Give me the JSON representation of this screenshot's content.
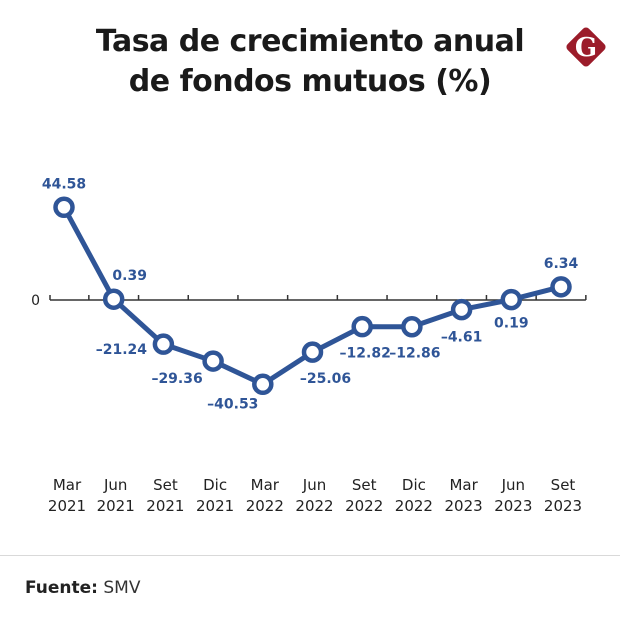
{
  "header": {
    "title_line1": "Tasa de crecimiento anual",
    "title_line2": "de fondos mutuos (%)",
    "logo_letter": "G",
    "logo_color": "#9b1c2a"
  },
  "footer": {
    "source_label": "Fuente:",
    "source_value": "SMV"
  },
  "colors": {
    "line": "#2f5597",
    "axis": "#333333",
    "label": "#2f5597"
  },
  "chart_data": {
    "type": "line",
    "title": "Tasa de crecimiento anual de fondos mutuos (%)",
    "xlabel": "",
    "ylabel": "",
    "y_zero_label": "0",
    "categories": [
      [
        "Mar",
        "2021"
      ],
      [
        "Jun",
        "2021"
      ],
      [
        "Set",
        "2021"
      ],
      [
        "Dic",
        "2021"
      ],
      [
        "Mar",
        "2022"
      ],
      [
        "Jun",
        "2022"
      ],
      [
        "Set",
        "2022"
      ],
      [
        "Dic",
        "2022"
      ],
      [
        "Mar",
        "2023"
      ],
      [
        "Jun",
        "2023"
      ],
      [
        "Set",
        "2023"
      ]
    ],
    "series": [
      {
        "name": "Tasa de crecimiento anual (%)",
        "values": [
          44.58,
          0.39,
          -21.24,
          -29.36,
          -40.53,
          -25.06,
          -12.82,
          -12.86,
          -4.61,
          0.19,
          6.34
        ],
        "labels": [
          "44.58",
          "0.39",
          "–21.24",
          "–29.36",
          "–40.53",
          "–25.06",
          "–12.82",
          "–12.86",
          "–4.61",
          "0.19",
          "6.34"
        ],
        "label_pos": [
          "above",
          "above-right",
          "below-left",
          "below",
          "below",
          "below",
          "below",
          "below",
          "below",
          "below",
          "above"
        ]
      }
    ],
    "grid": false,
    "legend": "none"
  }
}
